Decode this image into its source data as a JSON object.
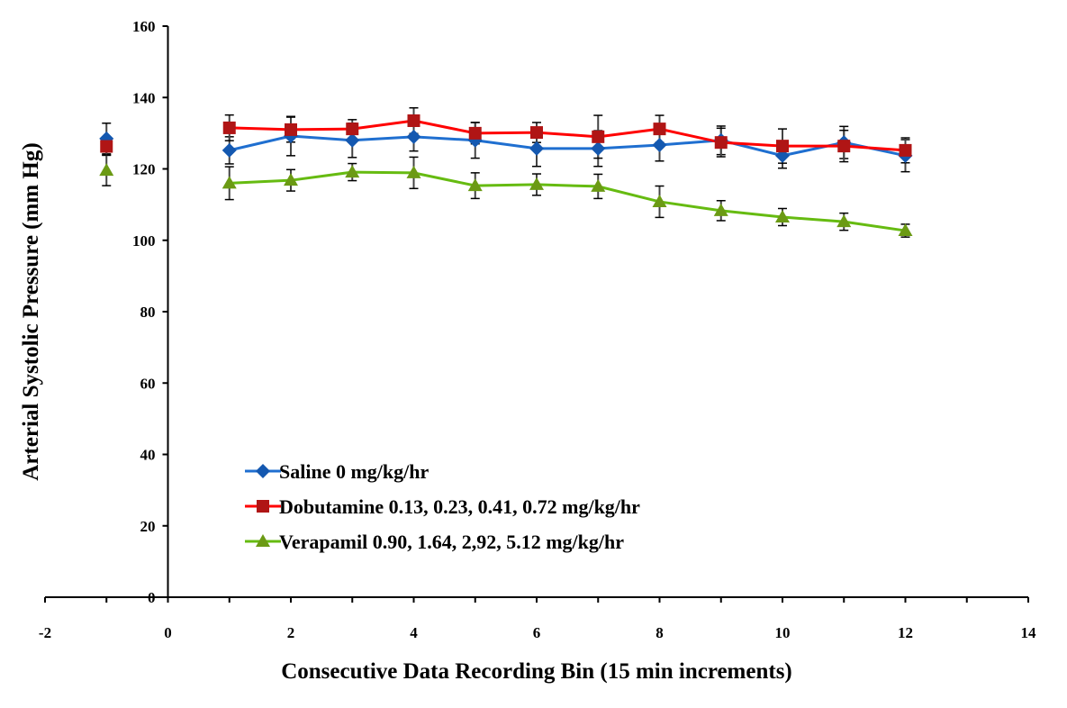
{
  "chart_data": {
    "type": "line",
    "title": "",
    "xlabel": "Consecutive Data Recording Bin (15 min increments)",
    "ylabel": "Arterial Systolic Pressure (mm Hg)",
    "xlim": [
      -2,
      14
    ],
    "ylim": [
      0,
      160
    ],
    "xticks": [
      -2,
      0,
      2,
      4,
      6,
      8,
      10,
      12,
      14
    ],
    "yticks": [
      0,
      20,
      40,
      60,
      80,
      100,
      120,
      140,
      160
    ],
    "grid": false,
    "legend_position": "bottom-left",
    "x": [
      -1,
      1,
      2,
      3,
      4,
      5,
      6,
      7,
      8,
      9,
      10,
      11,
      12
    ],
    "series": [
      {
        "name": "Saline",
        "legend_suffix": "0 mg/kg/hr",
        "marker": "diamond",
        "line_color": "#1F6FD0",
        "marker_color": "#1458B0",
        "values": [
          128.5,
          125.2,
          129.2,
          128.0,
          129.0,
          128.0,
          125.7,
          125.7,
          126.7,
          128.0,
          123.7,
          127.4,
          123.7
        ],
        "errors": [
          4.3,
          3.8,
          5.5,
          4.8,
          4.0,
          5.0,
          5.0,
          5.0,
          4.5,
          4.0,
          3.5,
          4.5,
          4.5
        ]
      },
      {
        "name": "Dobutamine",
        "legend_suffix": "0.13, 0.23, 0.41, 0.72 mg/kg/hr",
        "marker": "square",
        "line_color": "#FF0000",
        "marker_color": "#B01515",
        "values": [
          126.3,
          131.5,
          131.0,
          131.2,
          133.5,
          130.0,
          130.2,
          129.0,
          131.2,
          127.4,
          126.4,
          126.4,
          125.2
        ],
        "errors": [
          2.5,
          3.6,
          3.5,
          2.6,
          3.6,
          3.0,
          2.8,
          6.0,
          3.8,
          4.0,
          4.8,
          4.4,
          3.5
        ]
      },
      {
        "name": "Verapamil",
        "legend_suffix": "0.90, 1.64, 2,92, 5.12 mg/kg/hr",
        "marker": "triangle",
        "line_color": "#66BB11",
        "marker_color": "#6B9A14",
        "values": [
          119.6,
          116.0,
          116.8,
          119.1,
          118.9,
          115.3,
          115.6,
          115.1,
          110.8,
          108.3,
          106.5,
          105.2,
          102.7
        ],
        "errors": [
          4.3,
          4.6,
          3.0,
          2.4,
          4.4,
          3.6,
          3.0,
          3.4,
          4.4,
          2.8,
          2.4,
          2.4,
          1.8
        ]
      }
    ]
  }
}
